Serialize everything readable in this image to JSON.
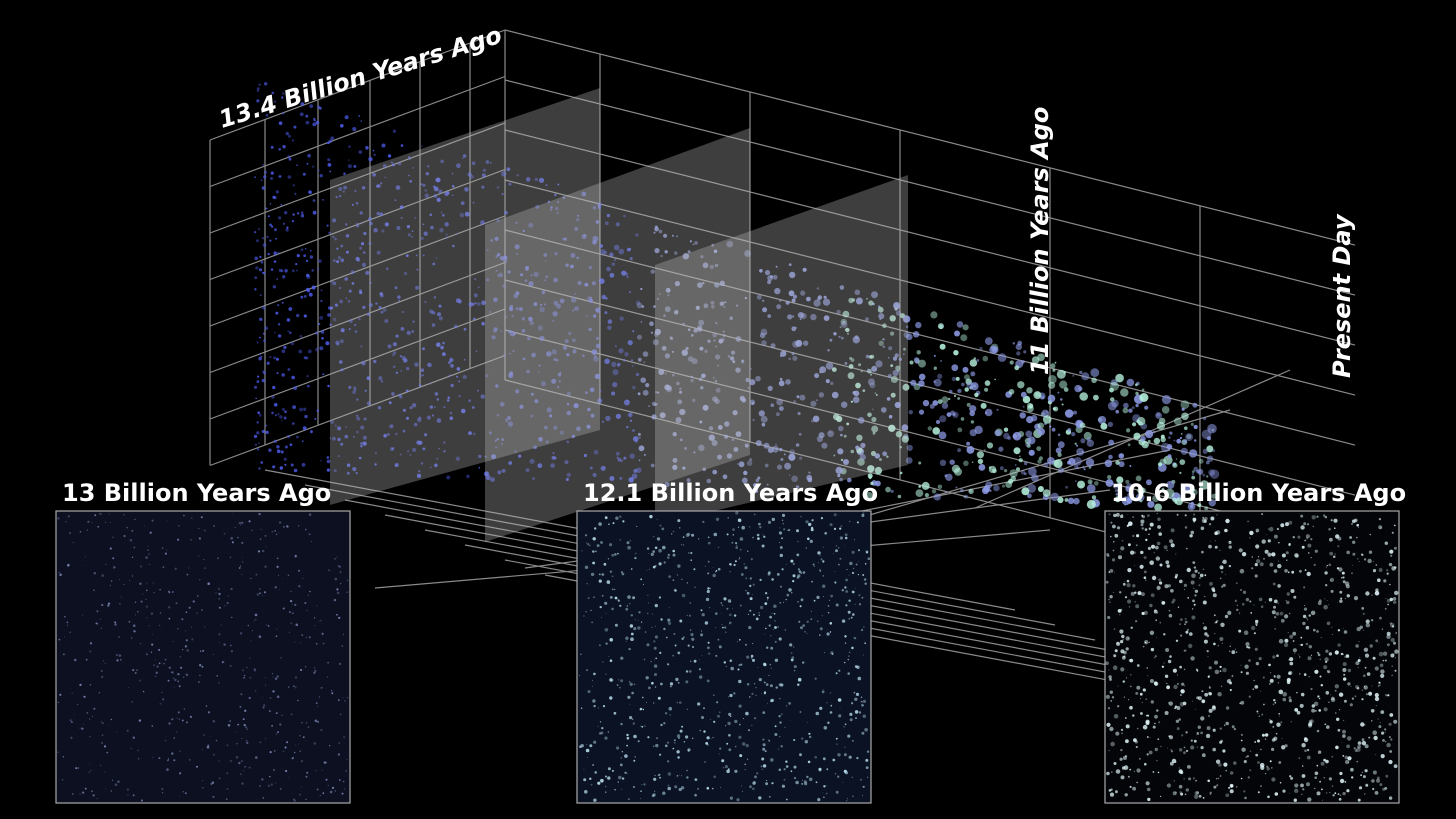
{
  "axis_labels": [
    "13.4 Billion Years Ago",
    "11 Billion Years Ago",
    "Present Day"
  ],
  "panels": [
    {
      "title": "13 Billion Years Ago"
    },
    {
      "title": "12.1 Billion Years Ago"
    },
    {
      "title": "10.6 Billion Years Ago"
    }
  ]
}
